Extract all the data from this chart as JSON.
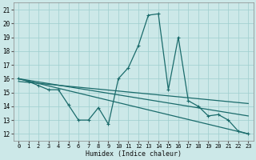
{
  "xlabel": "Humidex (Indice chaleur)",
  "xlim": [
    -0.5,
    23.5
  ],
  "ylim": [
    11.5,
    21.5
  ],
  "xticks": [
    0,
    1,
    2,
    3,
    4,
    5,
    6,
    7,
    8,
    9,
    10,
    11,
    12,
    13,
    14,
    15,
    16,
    17,
    18,
    19,
    20,
    21,
    22,
    23
  ],
  "yticks": [
    12,
    13,
    14,
    15,
    16,
    17,
    18,
    19,
    20,
    21
  ],
  "bg_color": "#cce8e8",
  "grid_color": "#9ecece",
  "line_color": "#1a6b6b",
  "line1_x": [
    0,
    1,
    2,
    3,
    4,
    5,
    6,
    7,
    8,
    9,
    10,
    11,
    12,
    13,
    14,
    15,
    16,
    17,
    18,
    19,
    20,
    21,
    22,
    23
  ],
  "line1_y": [
    16.0,
    15.8,
    15.5,
    15.2,
    15.2,
    14.1,
    13.0,
    13.0,
    13.9,
    12.7,
    16.0,
    16.8,
    18.4,
    20.6,
    20.7,
    15.2,
    19.0,
    14.4,
    14.0,
    13.3,
    13.4,
    13.0,
    12.2,
    12.0
  ],
  "line2_x": [
    0,
    23
  ],
  "line2_y": [
    16.0,
    12.0
  ],
  "line3_x": [
    0,
    23
  ],
  "line3_y": [
    16.0,
    13.3
  ],
  "line4_x": [
    0,
    23
  ],
  "line4_y": [
    15.8,
    14.2
  ]
}
